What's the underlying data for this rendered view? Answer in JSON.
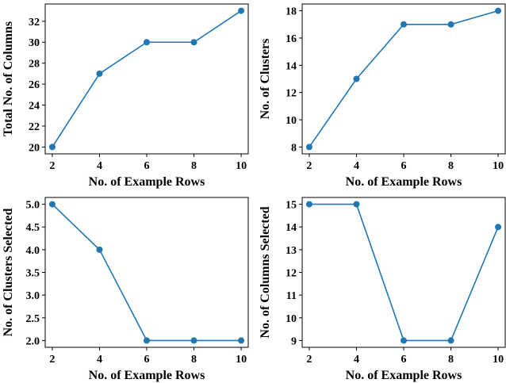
{
  "chart_data": [
    {
      "type": "line",
      "xlabel": "No. of Example Rows",
      "ylabel": "Total No. of Columns",
      "x": [
        2,
        4,
        6,
        8,
        10
      ],
      "series": [
        {
          "values": [
            20,
            27,
            30,
            30,
            33
          ]
        }
      ],
      "xticks": [
        "2",
        "4",
        "6",
        "8",
        "10"
      ],
      "yticks": [
        "20",
        "22",
        "24",
        "26",
        "28",
        "30",
        "32"
      ],
      "xlim": [
        1.7,
        10.3
      ],
      "ylim": [
        19.35,
        33.65
      ],
      "grid": false,
      "color": "#1f77b4"
    },
    {
      "type": "line",
      "xlabel": "No. of Example Rows",
      "ylabel": "No. of Clusters",
      "x": [
        2,
        4,
        6,
        8,
        10
      ],
      "series": [
        {
          "values": [
            8,
            13,
            17,
            17,
            18
          ]
        }
      ],
      "xticks": [
        "2",
        "4",
        "6",
        "8",
        "10"
      ],
      "yticks": [
        "8",
        "10",
        "12",
        "14",
        "16",
        "18"
      ],
      "xlim": [
        1.7,
        10.3
      ],
      "ylim": [
        7.5,
        18.5
      ],
      "grid": false,
      "color": "#1f77b4"
    },
    {
      "type": "line",
      "xlabel": "No. of Example Rows",
      "ylabel": "No. of Clusters Selected",
      "x": [
        2,
        4,
        6,
        8,
        10
      ],
      "series": [
        {
          "values": [
            5,
            4,
            2,
            2,
            2
          ]
        }
      ],
      "xticks": [
        "2",
        "4",
        "6",
        "8",
        "10"
      ],
      "yticks": [
        "2.0",
        "2.5",
        "3.0",
        "3.5",
        "4.0",
        "4.5",
        "5.0"
      ],
      "xlim": [
        1.7,
        10.3
      ],
      "ylim": [
        1.85,
        5.15
      ],
      "grid": false,
      "color": "#1f77b4"
    },
    {
      "type": "line",
      "xlabel": "No. of Example Rows",
      "ylabel": "No. of Columns Selected",
      "x": [
        2,
        4,
        6,
        8,
        10
      ],
      "series": [
        {
          "values": [
            15,
            15,
            9,
            9,
            14
          ]
        }
      ],
      "xticks": [
        "2",
        "4",
        "6",
        "8",
        "10"
      ],
      "yticks": [
        "9",
        "10",
        "11",
        "12",
        "13",
        "14",
        "15"
      ],
      "xlim": [
        1.7,
        10.3
      ],
      "ylim": [
        8.7,
        15.3
      ],
      "grid": false,
      "color": "#1f77b4"
    }
  ]
}
